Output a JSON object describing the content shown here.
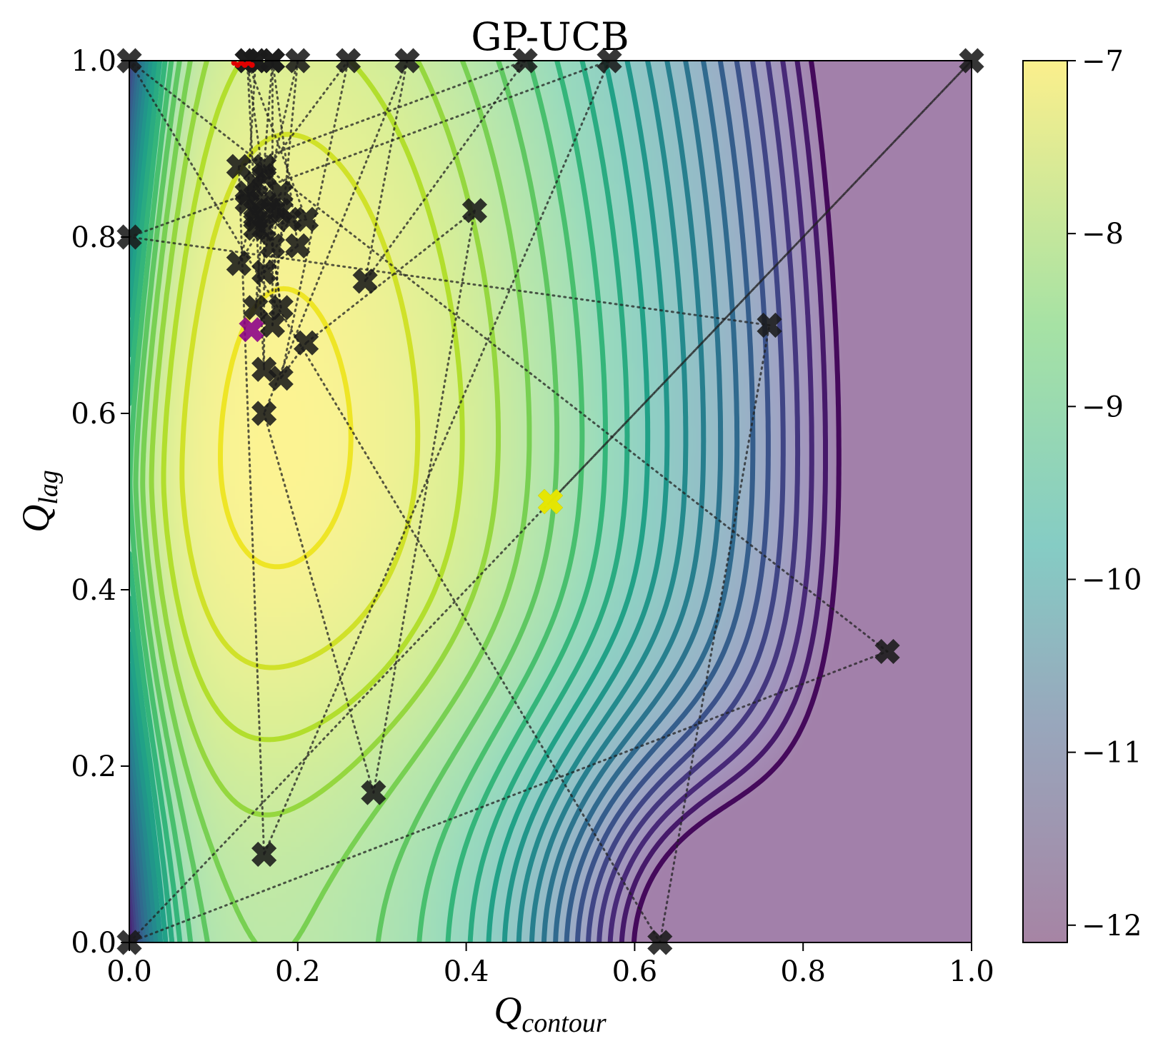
{
  "chart_data": {
    "type": "contour",
    "title": "GP-UCB",
    "xlabel": {
      "base": "Q",
      "sub": "contour"
    },
    "ylabel": {
      "base": "Q",
      "sub": "lag"
    },
    "xlim": [
      0.0,
      1.0
    ],
    "ylim": [
      0.0,
      1.0
    ],
    "xticks": [
      "0.0",
      "0.2",
      "0.4",
      "0.6",
      "0.8",
      "1.0"
    ],
    "yticks": [
      "0.0",
      "0.2",
      "0.4",
      "0.6",
      "0.8",
      "1.0"
    ],
    "colorbar": {
      "range": [
        -12.1,
        -7.0
      ],
      "ticks": [
        -7,
        -8,
        -9,
        -10,
        -11,
        -12
      ],
      "tick_labels": [
        "−7",
        "−8",
        "−9",
        "−10",
        "−11",
        "−12"
      ],
      "colormap": "viridis",
      "alpha": 0.5
    },
    "surface": {
      "description_of_extremes": "maximum near (0.17, 0.52); minimum near (0.65, 0.0); low strip at x=0",
      "level_count": 22
    },
    "queries": [
      [
        0.5,
        0.5
      ],
      [
        1.0,
        1.0
      ],
      [
        0.0,
        0.0
      ],
      [
        0.9,
        0.33
      ],
      [
        0.0,
        1.0
      ],
      [
        0.63,
        0.0
      ],
      [
        0.76,
        0.7
      ],
      [
        0.0,
        0.8
      ],
      [
        0.57,
        1.0
      ],
      [
        0.16,
        0.1
      ],
      [
        0.13,
        0.88
      ],
      [
        0.47,
        1.0
      ],
      [
        0.28,
        0.75
      ],
      [
        0.33,
        1.0
      ],
      [
        0.16,
        0.6
      ],
      [
        0.29,
        0.17
      ],
      [
        0.41,
        0.83
      ],
      [
        0.21,
        0.68
      ],
      [
        0.18,
        0.64
      ],
      [
        0.26,
        1.0
      ],
      [
        0.15,
        0.86
      ],
      [
        0.19,
        0.82
      ],
      [
        0.16,
        0.76
      ],
      [
        0.2,
        0.79
      ],
      [
        0.17,
        1.0
      ],
      [
        0.17,
        0.7
      ],
      [
        0.2,
        1.0
      ],
      [
        0.16,
        0.84
      ],
      [
        0.15,
        0.72
      ],
      [
        0.17,
        0.83
      ],
      [
        0.13,
        0.77
      ],
      [
        0.16,
        0.87
      ],
      [
        0.18,
        0.72
      ],
      [
        0.14,
        1.0
      ],
      [
        0.21,
        0.82
      ],
      [
        0.15,
        0.81
      ],
      [
        0.18,
        0.85
      ],
      [
        0.17,
        0.79
      ],
      [
        0.15,
        0.83
      ],
      [
        0.16,
        0.65
      ],
      [
        0.16,
        0.81
      ],
      [
        0.14,
        0.85
      ],
      [
        0.18,
        0.83
      ],
      [
        0.16,
        0.88
      ],
      [
        0.17,
        1.0
      ],
      [
        0.15,
        1.0
      ],
      [
        0.14,
        1.0
      ],
      [
        0.15,
        0.82
      ],
      [
        0.14,
        0.84
      ],
      [
        0.15,
        1.0
      ]
    ],
    "query_color": "#1a1a1a",
    "best_point": {
      "x": 0.145,
      "y": 0.695,
      "color": "#8b008b"
    },
    "initial_point": {
      "x": 0.5,
      "y": 0.5,
      "color": "#ffff00"
    },
    "red_cluster": {
      "x": 0.135,
      "y": 1.0,
      "color": "#e00000"
    }
  }
}
